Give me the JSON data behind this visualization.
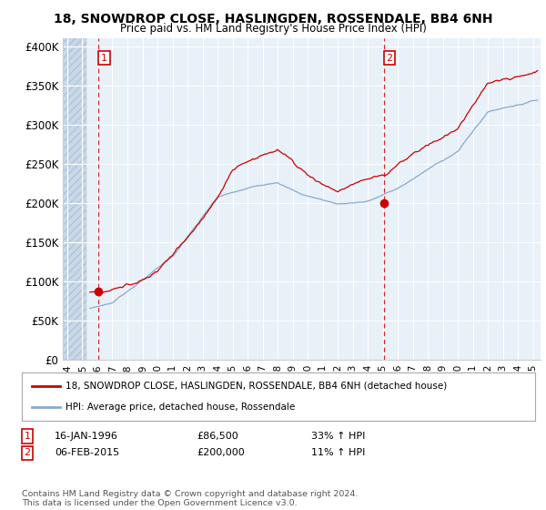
{
  "title": "18, SNOWDROP CLOSE, HASLINGDEN, ROSSENDALE, BB4 6NH",
  "subtitle": "Price paid vs. HM Land Registry's House Price Index (HPI)",
  "background_color": "#e8f0f8",
  "ylim": [
    0,
    410000
  ],
  "yticks": [
    0,
    50000,
    100000,
    150000,
    200000,
    250000,
    300000,
    350000,
    400000
  ],
  "ytick_labels": [
    "£0",
    "£50K",
    "£100K",
    "£150K",
    "£200K",
    "£250K",
    "£300K",
    "£350K",
    "£400K"
  ],
  "xlim_start": 1993.7,
  "xlim_end": 2025.5,
  "hatch_end": 1995.3,
  "purchase1_x": 1996.04,
  "purchase1_y": 86500,
  "purchase1_label": "1",
  "purchase1_date": "16-JAN-1996",
  "purchase1_price": "£86,500",
  "purchase1_hpi": "33% ↑ HPI",
  "purchase2_x": 2015.09,
  "purchase2_y": 200000,
  "purchase2_label": "2",
  "purchase2_date": "06-FEB-2015",
  "purchase2_price": "£200,000",
  "purchase2_hpi": "11% ↑ HPI",
  "legend_line1": "18, SNOWDROP CLOSE, HASLINGDEN, ROSSENDALE, BB4 6NH (detached house)",
  "legend_line2": "HPI: Average price, detached house, Rossendale",
  "footer": "Contains HM Land Registry data © Crown copyright and database right 2024.\nThis data is licensed under the Open Government Licence v3.0.",
  "line_color": "#cc0000",
  "hpi_color": "#88aacc",
  "xticks": [
    1994,
    1995,
    1996,
    1997,
    1998,
    1999,
    2000,
    2001,
    2002,
    2003,
    2004,
    2005,
    2006,
    2007,
    2008,
    2009,
    2010,
    2011,
    2012,
    2013,
    2014,
    2015,
    2016,
    2017,
    2018,
    2019,
    2020,
    2021,
    2022,
    2023,
    2024,
    2025
  ]
}
